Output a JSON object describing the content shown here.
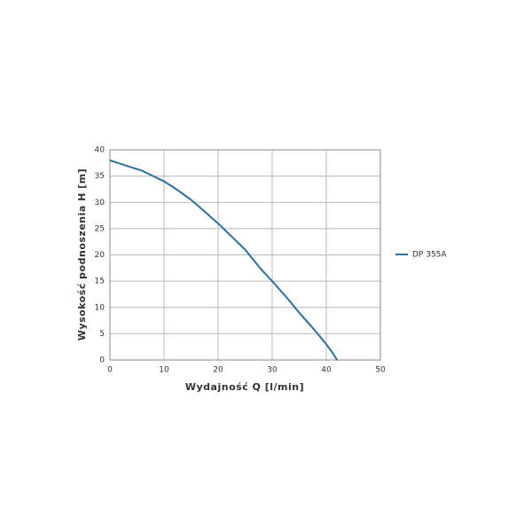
{
  "chart_data": {
    "type": "line",
    "x_label": "Wydajność Q [l/min]",
    "y_label": "Wysokość podnoszenia H [m]",
    "x": [
      0,
      3,
      6,
      8,
      10,
      12,
      15,
      18,
      20,
      22,
      25,
      28,
      30,
      33,
      35,
      38,
      40,
      41,
      42
    ],
    "series": [
      {
        "name": "DP 355A",
        "color": "#2a6f9e",
        "values": [
          38,
          37,
          36,
          35,
          34,
          32.7,
          30.5,
          27.8,
          26,
          24,
          21,
          17.2,
          15,
          11.5,
          9,
          5.5,
          3,
          1.6,
          0
        ]
      }
    ],
    "xlim": [
      0,
      50
    ],
    "xticks": [
      0,
      10,
      20,
      30,
      40,
      50
    ],
    "ylim": [
      0,
      40
    ],
    "yticks": [
      0,
      5,
      10,
      15,
      20,
      25,
      30,
      35,
      40
    ],
    "grid": true,
    "legend": "right"
  }
}
